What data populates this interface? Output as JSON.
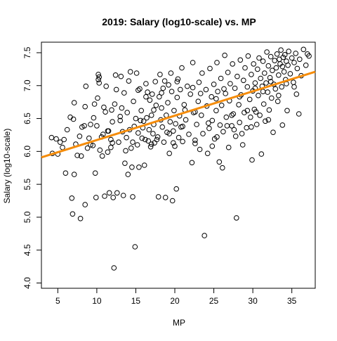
{
  "chart_data": {
    "type": "scatter",
    "title": "2019: Salary (log10-scale) vs. MP",
    "xlabel": "MP",
    "ylabel": "Salary (log10-scale)",
    "xlim": [
      2.9,
      38.0
    ],
    "ylim": [
      3.92,
      7.66
    ],
    "x_ticks": [
      5,
      10,
      15,
      20,
      25,
      30,
      35
    ],
    "x_tick_labels": [
      "5",
      "10",
      "15",
      "20",
      "25",
      "30",
      "35"
    ],
    "y_ticks": [
      4.0,
      4.5,
      5.0,
      5.5,
      6.0,
      6.5,
      7.0,
      7.5
    ],
    "y_tick_labels": [
      "4.0",
      "4.5",
      "5.0",
      "5.5",
      "6.0",
      "6.5",
      "7.0",
      "7.5"
    ],
    "grid": false,
    "point_color": "#000000",
    "regression_line": {
      "color": "#F58C0A",
      "x": [
        2.9,
        38.0
      ],
      "y": [
        5.91,
        7.21
      ]
    },
    "points": [
      [
        4.2,
        6.21
      ],
      [
        4.3,
        5.97
      ],
      [
        4.8,
        6.19
      ],
      [
        5.0,
        5.96
      ],
      [
        5.3,
        6.14
      ],
      [
        5.6,
        6.06
      ],
      [
        5.8,
        6.18
      ],
      [
        6.0,
        5.67
      ],
      [
        6.2,
        6.33
      ],
      [
        6.6,
        6.52
      ],
      [
        6.8,
        5.29
      ],
      [
        6.9,
        5.05
      ],
      [
        7.0,
        6.49
      ],
      [
        7.1,
        5.65
      ],
      [
        7.1,
        6.74
      ],
      [
        7.3,
        6.11
      ],
      [
        7.5,
        5.94
      ],
      [
        7.8,
        6.23
      ],
      [
        7.9,
        4.98
      ],
      [
        8.0,
        5.93
      ],
      [
        8.1,
        6.37
      ],
      [
        8.4,
        6.39
      ],
      [
        8.5,
        6.68
      ],
      [
        8.5,
        5.19
      ],
      [
        8.6,
        6.99
      ],
      [
        8.8,
        6.05
      ],
      [
        9.0,
        6.2
      ],
      [
        9.2,
        6.41
      ],
      [
        9.5,
        6.09
      ],
      [
        9.6,
        6.51
      ],
      [
        9.7,
        6.72
      ],
      [
        9.8,
        5.67
      ],
      [
        9.9,
        5.3
      ],
      [
        10.0,
        6.39
      ],
      [
        10.1,
        6.81
      ],
      [
        10.2,
        7.09
      ],
      [
        10.2,
        7.17
      ],
      [
        10.3,
        7.13
      ],
      [
        10.3,
        7.04
      ],
      [
        10.4,
        6.02
      ],
      [
        10.6,
        6.22
      ],
      [
        10.7,
        5.93
      ],
      [
        10.8,
        6.26
      ],
      [
        10.9,
        6.67
      ],
      [
        11.0,
        5.32
      ],
      [
        11.1,
        6.6
      ],
      [
        11.2,
        6.99
      ],
      [
        11.4,
        5.99
      ],
      [
        11.5,
        6.31
      ],
      [
        11.6,
        5.37
      ],
      [
        11.8,
        6.18
      ],
      [
        11.9,
        6.63
      ],
      [
        12.0,
        6.13
      ],
      [
        12.1,
        5.3
      ],
      [
        12.2,
        4.23
      ],
      [
        12.3,
        6.72
      ],
      [
        12.4,
        7.16
      ],
      [
        12.5,
        6.94
      ],
      [
        12.6,
        5.37
      ],
      [
        12.8,
        6.14
      ],
      [
        13.0,
        6.53
      ],
      [
        13.0,
        6.47
      ],
      [
        13.1,
        7.14
      ],
      [
        13.3,
        6.3
      ],
      [
        13.4,
        5.33
      ],
      [
        13.5,
        6.89
      ],
      [
        13.6,
        5.82
      ],
      [
        13.7,
        6.01
      ],
      [
        13.8,
        6.21
      ],
      [
        13.9,
        6.59
      ],
      [
        14.0,
        5.65
      ],
      [
        14.1,
        7.07
      ],
      [
        14.2,
        6.33
      ],
      [
        14.3,
        7.21
      ],
      [
        14.4,
        6.05
      ],
      [
        14.5,
        5.76
      ],
      [
        14.6,
        5.31
      ],
      [
        14.7,
        6.76
      ],
      [
        14.8,
        6.38
      ],
      [
        14.9,
        4.55
      ],
      [
        15.0,
        6.5
      ],
      [
        15.1,
        7.19
      ],
      [
        15.2,
        6.1
      ],
      [
        15.3,
        6.28
      ],
      [
        15.4,
        5.76
      ],
      [
        15.5,
        6.95
      ],
      [
        15.6,
        6.47
      ],
      [
        15.7,
        6.62
      ],
      [
        15.8,
        6.2
      ],
      [
        15.9,
        6.36
      ],
      [
        16.0,
        6.46
      ],
      [
        16.1,
        5.79
      ],
      [
        16.2,
        6.18
      ],
      [
        16.3,
        7.03
      ],
      [
        16.4,
        6.51
      ],
      [
        16.5,
        6.9
      ],
      [
        16.6,
        6.16
      ],
      [
        16.7,
        6.33
      ],
      [
        16.8,
        6.78
      ],
      [
        16.9,
        6.07
      ],
      [
        17.0,
        6.55
      ],
      [
        17.1,
        6.87
      ],
      [
        17.2,
        6.27
      ],
      [
        17.3,
        6.41
      ],
      [
        17.4,
        6.13
      ],
      [
        17.5,
        7.06
      ],
      [
        17.6,
        6.7
      ],
      [
        17.7,
        6.18
      ],
      [
        17.8,
        6.22
      ],
      [
        17.9,
        5.31
      ],
      [
        18.0,
        6.83
      ],
      [
        18.1,
        7.17
      ],
      [
        18.2,
        6.48
      ],
      [
        18.3,
        6.66
      ],
      [
        18.4,
        6.37
      ],
      [
        18.5,
        6.96
      ],
      [
        18.6,
        6.14
      ],
      [
        18.7,
        7.07
      ],
      [
        18.8,
        5.3
      ],
      [
        18.9,
        6.55
      ],
      [
        19.0,
        6.29
      ],
      [
        19.1,
        6.74
      ],
      [
        19.2,
        7.01
      ],
      [
        19.3,
        5.97
      ],
      [
        19.4,
        6.45
      ],
      [
        19.5,
        7.19
      ],
      [
        19.6,
        6.91
      ],
      [
        19.7,
        5.25
      ],
      [
        19.8,
        6.31
      ],
      [
        19.9,
        6.62
      ],
      [
        20.0,
        6.08
      ],
      [
        20.1,
        6.42
      ],
      [
        20.2,
        5.43
      ],
      [
        20.3,
        6.82
      ],
      [
        20.4,
        7.1
      ],
      [
        20.5,
        6.21
      ],
      [
        20.6,
        6.54
      ],
      [
        20.7,
        6.94
      ],
      [
        20.8,
        6.37
      ],
      [
        20.9,
        7.27
      ],
      [
        21.0,
        6.15
      ],
      [
        21.2,
        6.71
      ],
      [
        21.4,
        6.48
      ],
      [
        21.6,
        6.99
      ],
      [
        21.8,
        6.26
      ],
      [
        22.0,
        6.87
      ],
      [
        22.2,
        5.83
      ],
      [
        22.3,
        7.35
      ],
      [
        22.4,
        6.59
      ],
      [
        22.6,
        6.12
      ],
      [
        22.8,
        6.41
      ],
      [
        23.0,
        6.76
      ],
      [
        23.1,
        7.05
      ],
      [
        23.2,
        6.03
      ],
      [
        23.4,
        6.55
      ],
      [
        23.5,
        7.19
      ],
      [
        23.6,
        6.27
      ],
      [
        23.8,
        4.72
      ],
      [
        24.0,
        6.94
      ],
      [
        24.1,
        6.69
      ],
      [
        24.2,
        5.97
      ],
      [
        24.4,
        6.35
      ],
      [
        24.5,
        7.26
      ],
      [
        24.7,
        6.83
      ],
      [
        24.8,
        6.47
      ],
      [
        25.0,
        7.02
      ],
      [
        25.1,
        6.19
      ],
      [
        25.3,
        6.62
      ],
      [
        25.4,
        7.35
      ],
      [
        25.5,
        6.91
      ],
      [
        25.7,
        5.84
      ],
      [
        25.8,
        6.4
      ],
      [
        25.9,
        7.11
      ],
      [
        26.0,
        6.7
      ],
      [
        26.1,
        5.75
      ],
      [
        26.2,
        6.3
      ],
      [
        26.4,
        7.46
      ],
      [
        26.5,
        6.88
      ],
      [
        26.6,
        6.52
      ],
      [
        26.8,
        7.2
      ],
      [
        26.9,
        6.06
      ],
      [
        27.0,
        6.77
      ],
      [
        27.1,
        7.03
      ],
      [
        27.3,
        6.39
      ],
      [
        27.4,
        7.33
      ],
      [
        27.5,
        6.57
      ],
      [
        27.7,
        6.96
      ],
      [
        27.8,
        6.23
      ],
      [
        27.9,
        4.99
      ],
      [
        28.0,
        7.14
      ],
      [
        28.2,
        6.71
      ],
      [
        28.3,
        6.44
      ],
      [
        28.4,
        7.39
      ],
      [
        28.5,
        6.86
      ],
      [
        28.7,
        6.1
      ],
      [
        28.8,
        7.08
      ],
      [
        28.9,
        6.59
      ],
      [
        29.0,
        7.27
      ],
      [
        29.2,
        6.36
      ],
      [
        29.3,
        6.98
      ],
      [
        29.4,
        7.45
      ],
      [
        29.6,
        6.79
      ],
      [
        29.7,
        6.52
      ],
      [
        29.8,
        7.17
      ],
      [
        29.9,
        5.87
      ],
      [
        30.0,
        6.92
      ],
      [
        30.1,
        7.33
      ],
      [
        30.2,
        6.64
      ],
      [
        30.3,
        7.04
      ],
      [
        30.5,
        6.41
      ],
      [
        30.6,
        7.25
      ],
      [
        30.7,
        6.85
      ],
      [
        30.8,
        7.42
      ],
      [
        30.9,
        6.55
      ],
      [
        31.0,
        7.11
      ],
      [
        31.1,
        5.96
      ],
      [
        31.2,
        6.99
      ],
      [
        31.3,
        7.37
      ],
      [
        31.4,
        6.72
      ],
      [
        31.5,
        7.19
      ],
      [
        31.6,
        6.46
      ],
      [
        31.7,
        7.04
      ],
      [
        31.8,
        7.51
      ],
      [
        31.9,
        6.9
      ],
      [
        32.0,
        7.3
      ],
      [
        32.1,
        6.63
      ],
      [
        32.2,
        7.12
      ],
      [
        32.3,
        7.44
      ],
      [
        32.4,
        6.81
      ],
      [
        32.5,
        7.23
      ],
      [
        32.6,
        6.29
      ],
      [
        32.7,
        7.02
      ],
      [
        32.8,
        7.38
      ],
      [
        32.9,
        6.95
      ],
      [
        33.0,
        7.27
      ],
      [
        33.1,
        7.48
      ],
      [
        33.2,
        6.76
      ],
      [
        33.3,
        7.16
      ],
      [
        33.4,
        7.4
      ],
      [
        33.5,
        7.33
      ],
      [
        33.6,
        7.54
      ],
      [
        33.7,
        6.98
      ],
      [
        33.8,
        7.29
      ],
      [
        33.9,
        7.43
      ],
      [
        34.0,
        7.21
      ],
      [
        34.1,
        7.47
      ],
      [
        34.2,
        7.09
      ],
      [
        34.3,
        7.37
      ],
      [
        34.4,
        6.62
      ],
      [
        34.5,
        7.31
      ],
      [
        34.6,
        7.52
      ],
      [
        34.8,
        7.18
      ],
      [
        35.0,
        7.42
      ],
      [
        35.2,
        7.05
      ],
      [
        35.3,
        7.35
      ],
      [
        35.5,
        7.49
      ],
      [
        35.7,
        7.26
      ],
      [
        35.9,
        6.57
      ],
      [
        36.0,
        7.4
      ],
      [
        36.2,
        7.15
      ],
      [
        36.5,
        7.55
      ],
      [
        36.8,
        7.31
      ],
      [
        37.0,
        7.48
      ],
      [
        37.2,
        7.45
      ],
      [
        11.4,
        6.31
      ],
      [
        12.0,
        6.45
      ],
      [
        13.2,
        6.66
      ],
      [
        15.3,
        6.93
      ],
      [
        16.3,
        6.83
      ],
      [
        17.3,
        6.63
      ],
      [
        18.3,
        6.89
      ],
      [
        19.3,
        6.27
      ],
      [
        20.3,
        7.06
      ],
      [
        21.3,
        6.63
      ],
      [
        22.3,
        6.97
      ],
      [
        23.3,
        6.88
      ],
      [
        24.3,
        6.43
      ],
      [
        25.3,
        6.8
      ],
      [
        26.3,
        6.95
      ],
      [
        27.3,
        6.55
      ],
      [
        28.3,
        6.83
      ],
      [
        29.3,
        6.62
      ],
      [
        30.3,
        6.96
      ],
      [
        31.3,
        6.91
      ],
      [
        32.3,
        7.06
      ],
      [
        33.3,
        6.85
      ],
      [
        34.3,
        7.03
      ],
      [
        35.3,
        6.98
      ],
      [
        21.0,
        6.38
      ],
      [
        22.6,
        6.6
      ],
      [
        24.8,
        6.08
      ],
      [
        26.7,
        6.39
      ],
      [
        28.6,
        6.27
      ],
      [
        30.4,
        6.6
      ],
      [
        32.0,
        6.48
      ],
      [
        33.8,
        6.4
      ],
      [
        35.6,
        6.87
      ],
      [
        9.2,
        6.1
      ],
      [
        11.8,
        6.06
      ],
      [
        14.6,
        6.14
      ],
      [
        17.0,
        6.11
      ],
      [
        19.8,
        6.13
      ],
      [
        22.6,
        6.17
      ],
      [
        25.4,
        6.22
      ],
      [
        27.6,
        6.33
      ],
      [
        29.8,
        6.37
      ]
    ]
  }
}
